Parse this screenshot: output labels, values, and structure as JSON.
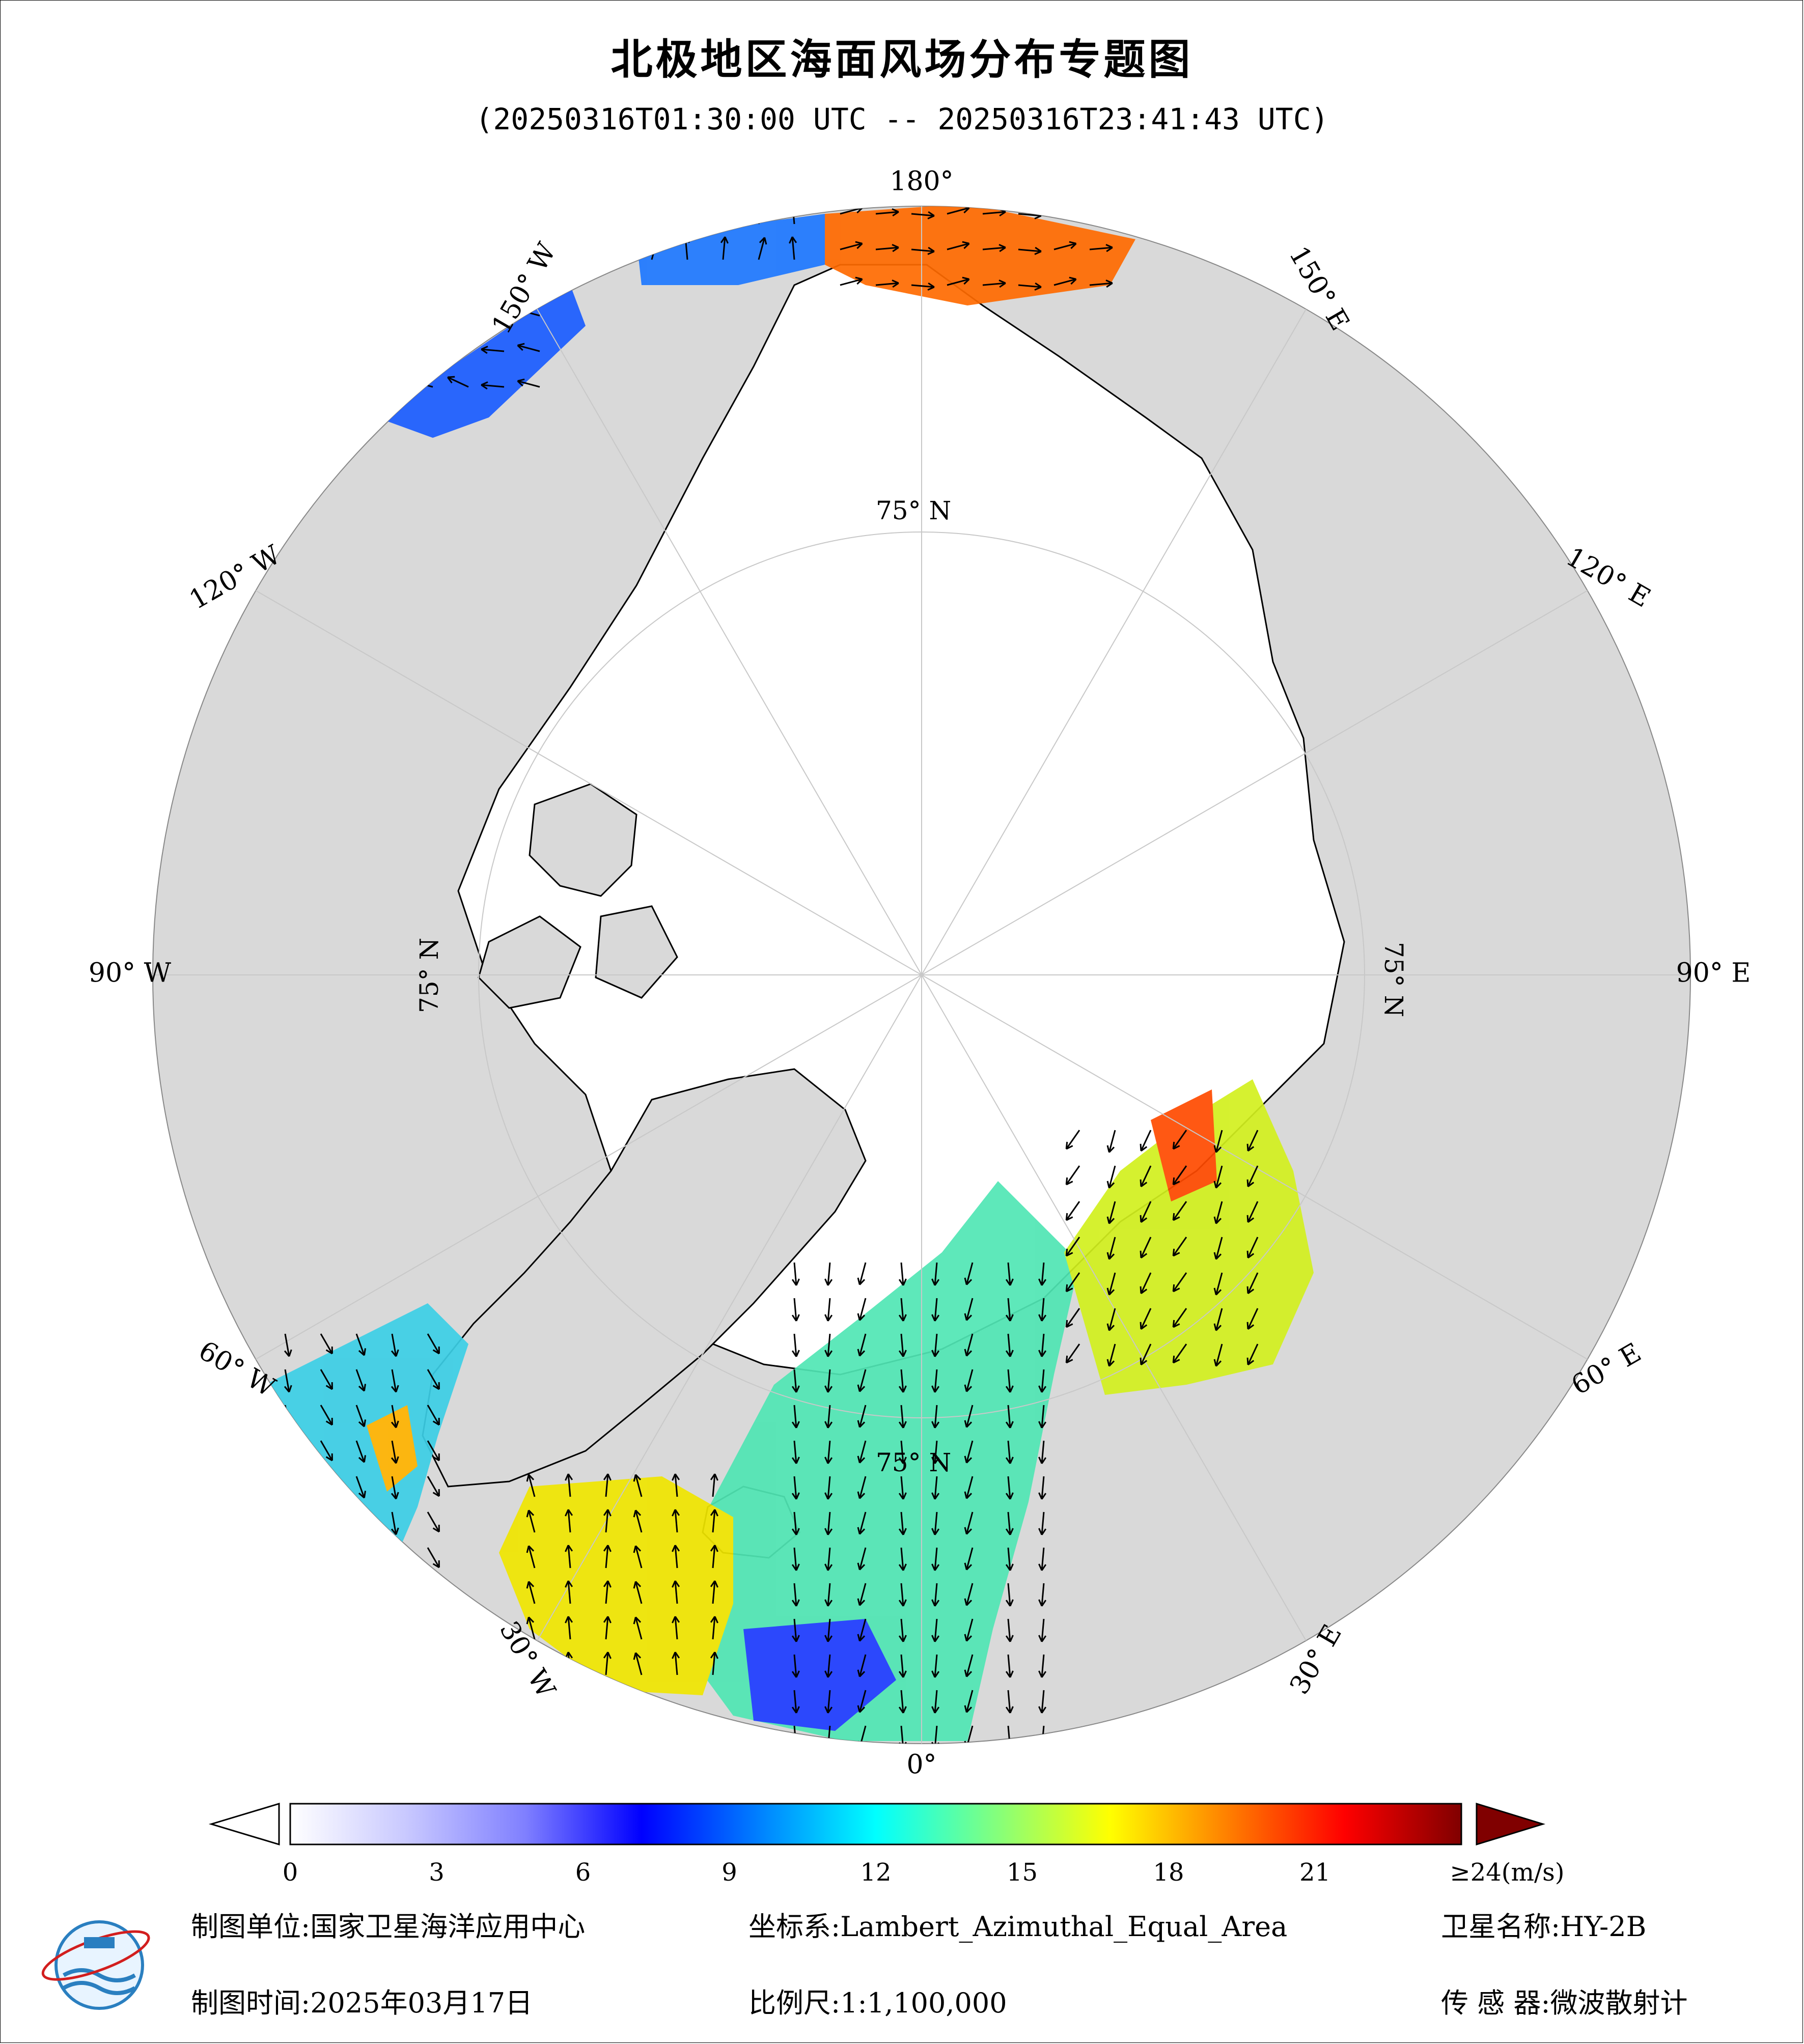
{
  "title": "北极地区海面风场分布专题图",
  "subtitle": "(20250316T01:30:00 UTC -- 20250316T23:41:43 UTC)",
  "map": {
    "lon_labels": [
      {
        "text": "180°",
        "lon": 180
      },
      {
        "text": "150° E",
        "lon": 150
      },
      {
        "text": "120° E",
        "lon": 120
      },
      {
        "text": "90° E",
        "lon": 90
      },
      {
        "text": "60° E",
        "lon": 60
      },
      {
        "text": "30° E",
        "lon": 30
      },
      {
        "text": "0°",
        "lon": 0
      },
      {
        "text": "30° W",
        "lon": -30
      },
      {
        "text": "60° W",
        "lon": -60
      },
      {
        "text": "90° W",
        "lon": -90
      },
      {
        "text": "120° W",
        "lon": -120
      },
      {
        "text": "150° W",
        "lon": -150
      }
    ],
    "lat_labels": [
      {
        "text": "75° N",
        "position": "top"
      },
      {
        "text": "75° N",
        "position": "right"
      },
      {
        "text": "75° N",
        "position": "left"
      },
      {
        "text": "75° N",
        "position": "bottom"
      }
    ],
    "colors": {
      "land": "#d9d9d9",
      "ice": "#ffffff",
      "graticule": "#c8c8c8",
      "coast": "#000000",
      "arrow": "#000000"
    }
  },
  "colorbar": {
    "ticks": [
      "0",
      "3",
      "6",
      "9",
      "12",
      "15",
      "18",
      "21",
      "≥24(m/s)"
    ],
    "tick_values": [
      0,
      3,
      6,
      9,
      12,
      15,
      18,
      21,
      24
    ],
    "min": 0,
    "max": 24,
    "unit": "m/s",
    "colors": [
      "#ffffff",
      "#c8c8ff",
      "#8080ff",
      "#0000ff",
      "#0080ff",
      "#00ffff",
      "#80ff80",
      "#ffff00",
      "#ff8000",
      "#ff0000",
      "#800000"
    ]
  },
  "footer": {
    "unit_label": "制图单位:",
    "unit_value": "国家卫星海洋应用中心",
    "time_label": "制图时间:",
    "time_value": "2025年03月17日",
    "crs_label": "坐标系:",
    "crs_value": "Lambert_Azimuthal_Equal_Area",
    "scale_label": "比例尺:",
    "scale_value": "1:1,100,000",
    "satellite_label": "卫星名称:",
    "satellite_value": "HY-2B",
    "sensor_label": "传 感 器:",
    "sensor_value": "微波散射计"
  }
}
